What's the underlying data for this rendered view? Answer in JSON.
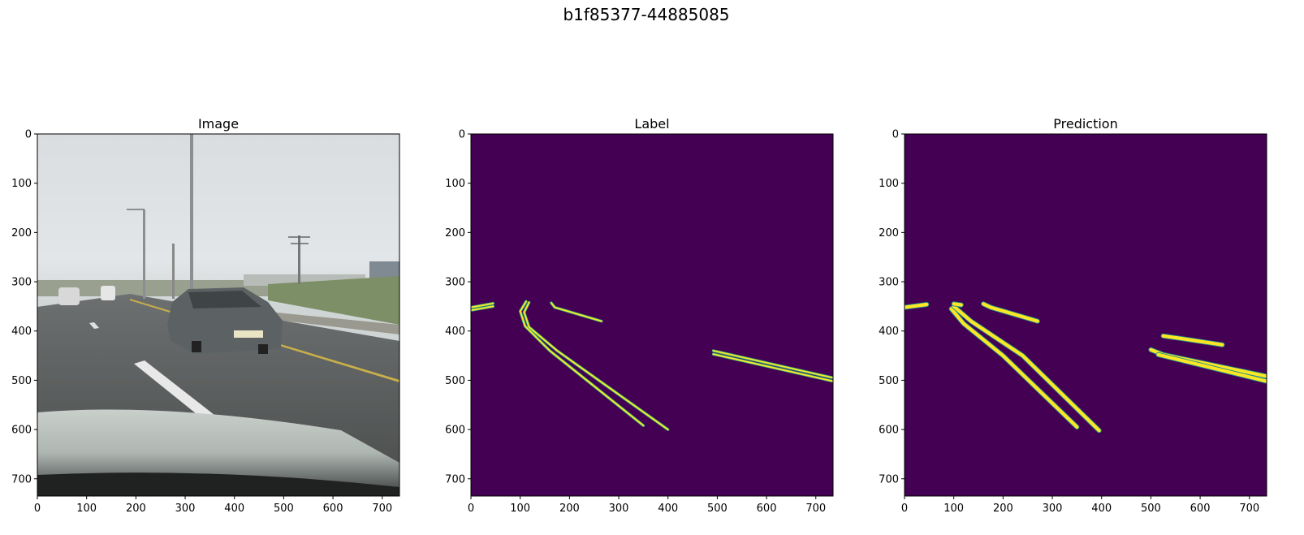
{
  "suptitle": "b1f85377-44885085",
  "chart_data": [
    {
      "type": "image",
      "title": "Image",
      "xlim": [
        0,
        735
      ],
      "ylim": [
        735,
        0
      ],
      "xticks": [
        0,
        100,
        200,
        300,
        400,
        500,
        600,
        700
      ],
      "yticks": [
        0,
        100,
        200,
        300,
        400,
        500,
        600,
        700
      ],
      "content": "road-scene-photo"
    },
    {
      "type": "heatmap",
      "title": "Label",
      "xlim": [
        0,
        735
      ],
      "ylim": [
        735,
        0
      ],
      "xticks": [
        0,
        100,
        200,
        300,
        400,
        500,
        600,
        700
      ],
      "yticks": [
        0,
        100,
        200,
        300,
        400,
        500,
        600,
        700
      ],
      "colormap": "viridis",
      "background_color": "#440154",
      "line_color": "#fde725",
      "edge_color": "#35b779",
      "lane_lines": [
        [
          [
            0,
            352
          ],
          [
            45,
            344
          ]
        ],
        [
          [
            0,
            358
          ],
          [
            45,
            350
          ]
        ],
        [
          [
            112,
            340
          ],
          [
            100,
            360
          ],
          [
            110,
            390
          ],
          [
            160,
            440
          ],
          [
            350,
            592
          ]
        ],
        [
          [
            118,
            342
          ],
          [
            108,
            362
          ],
          [
            118,
            392
          ],
          [
            175,
            440
          ],
          [
            400,
            600
          ]
        ],
        [
          [
            163,
            343
          ],
          [
            170,
            352
          ],
          [
            265,
            380
          ]
        ],
        [
          [
            492,
            440
          ],
          [
            735,
            495
          ]
        ],
        [
          [
            492,
            447
          ],
          [
            735,
            502
          ]
        ]
      ]
    },
    {
      "type": "heatmap",
      "title": "Prediction",
      "xlim": [
        0,
        735
      ],
      "ylim": [
        735,
        0
      ],
      "xticks": [
        0,
        100,
        200,
        300,
        400,
        500,
        600,
        700
      ],
      "yticks": [
        0,
        100,
        200,
        300,
        400,
        500,
        600,
        700
      ],
      "colormap": "viridis",
      "background_color": "#440154",
      "line_color": "#fde725",
      "edge_color": "#21918c",
      "lane_lines": [
        [
          [
            0,
            352
          ],
          [
            45,
            346
          ]
        ],
        [
          [
            95,
            355
          ],
          [
            120,
            385
          ],
          [
            200,
            450
          ],
          [
            350,
            595
          ]
        ],
        [
          [
            100,
            350
          ],
          [
            135,
            380
          ],
          [
            240,
            450
          ],
          [
            395,
            602
          ]
        ],
        [
          [
            100,
            345
          ],
          [
            115,
            347
          ]
        ],
        [
          [
            160,
            345
          ],
          [
            175,
            352
          ],
          [
            270,
            380
          ]
        ],
        [
          [
            500,
            438
          ],
          [
            525,
            448
          ],
          [
            735,
            492
          ]
        ],
        [
          [
            515,
            448
          ],
          [
            735,
            502
          ]
        ],
        [
          [
            525,
            410
          ],
          [
            560,
            415
          ],
          [
            645,
            428
          ]
        ]
      ]
    }
  ]
}
